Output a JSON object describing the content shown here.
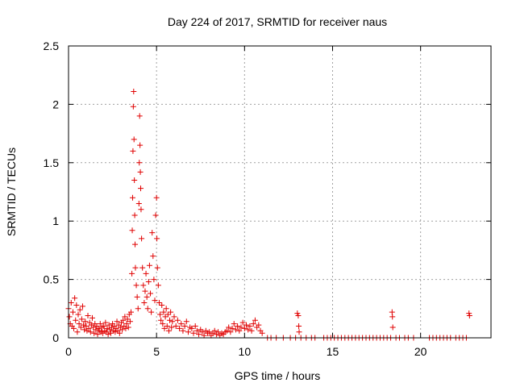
{
  "chart_data": {
    "type": "scatter",
    "title": "Day 224 of 2017, SRMTID for receiver naus",
    "xlabel": "GPS time / hours",
    "ylabel": "SRMTID / TECUs",
    "xlim": [
      0,
      24
    ],
    "ylim": [
      0,
      2.5
    ],
    "xticks": [
      0,
      5,
      10,
      15,
      20
    ],
    "xtick_labels": [
      "0",
      "5",
      "10",
      "15",
      "20"
    ],
    "yticks": [
      0,
      0.5,
      1,
      1.5,
      2,
      2.5
    ],
    "ytick_labels": [
      "0",
      "0.5",
      "1",
      "1.5",
      "2",
      "2.5"
    ],
    "grid": true,
    "marker": "plus",
    "color": "#e00000",
    "series": [
      {
        "name": "SRMTID",
        "points": [
          [
            0.0,
            0.25
          ],
          [
            0.05,
            0.18
          ],
          [
            0.1,
            0.12
          ],
          [
            0.15,
            0.3
          ],
          [
            0.2,
            0.1
          ],
          [
            0.25,
            0.22
          ],
          [
            0.3,
            0.08
          ],
          [
            0.35,
            0.34
          ],
          [
            0.4,
            0.15
          ],
          [
            0.45,
            0.28
          ],
          [
            0.5,
            0.05
          ],
          [
            0.55,
            0.2
          ],
          [
            0.6,
            0.12
          ],
          [
            0.65,
            0.24
          ],
          [
            0.7,
            0.09
          ],
          [
            0.75,
            0.16
          ],
          [
            0.8,
            0.27
          ],
          [
            0.85,
            0.11
          ],
          [
            0.9,
            0.07
          ],
          [
            0.95,
            0.14
          ],
          [
            1.0,
            0.1
          ],
          [
            1.05,
            0.06
          ],
          [
            1.1,
            0.19
          ],
          [
            1.15,
            0.08
          ],
          [
            1.2,
            0.13
          ],
          [
            1.25,
            0.05
          ],
          [
            1.3,
            0.11
          ],
          [
            1.35,
            0.17
          ],
          [
            1.4,
            0.09
          ],
          [
            1.45,
            0.04
          ],
          [
            1.5,
            0.12
          ],
          [
            1.55,
            0.07
          ],
          [
            1.6,
            0.1
          ],
          [
            1.65,
            0.03
          ],
          [
            1.7,
            0.08
          ],
          [
            1.75,
            0.06
          ],
          [
            1.8,
            0.12
          ],
          [
            1.85,
            0.05
          ],
          [
            1.9,
            0.09
          ],
          [
            1.95,
            0.04
          ],
          [
            2.0,
            0.1
          ],
          [
            2.05,
            0.06
          ],
          [
            2.1,
            0.13
          ],
          [
            2.15,
            0.05
          ],
          [
            2.2,
            0.08
          ],
          [
            2.25,
            0.03
          ],
          [
            2.3,
            0.11
          ],
          [
            2.35,
            0.07
          ],
          [
            2.4,
            0.04
          ],
          [
            2.45,
            0.09
          ],
          [
            2.5,
            0.12
          ],
          [
            2.55,
            0.06
          ],
          [
            2.6,
            0.1
          ],
          [
            2.65,
            0.05
          ],
          [
            2.7,
            0.08
          ],
          [
            2.75,
            0.14
          ],
          [
            2.8,
            0.06
          ],
          [
            2.85,
            0.11
          ],
          [
            2.9,
            0.04
          ],
          [
            2.95,
            0.09
          ],
          [
            3.0,
            0.13
          ],
          [
            3.05,
            0.07
          ],
          [
            3.1,
            0.15
          ],
          [
            3.15,
            0.1
          ],
          [
            3.2,
            0.18
          ],
          [
            3.25,
            0.08
          ],
          [
            3.3,
            0.12
          ],
          [
            3.35,
            0.16
          ],
          [
            3.4,
            0.09
          ],
          [
            3.45,
            0.2
          ],
          [
            3.5,
            0.14
          ],
          [
            3.55,
            0.22
          ],
          [
            3.6,
            0.55
          ],
          [
            3.62,
            0.92
          ],
          [
            3.64,
            1.2
          ],
          [
            3.66,
            1.6
          ],
          [
            3.68,
            1.98
          ],
          [
            3.7,
            2.11
          ],
          [
            3.72,
            1.7
          ],
          [
            3.74,
            1.35
          ],
          [
            3.76,
            1.05
          ],
          [
            3.78,
            0.8
          ],
          [
            3.8,
            0.6
          ],
          [
            3.85,
            0.45
          ],
          [
            3.9,
            0.35
          ],
          [
            3.95,
            0.25
          ],
          [
            4.0,
            1.15
          ],
          [
            4.02,
            1.5
          ],
          [
            4.04,
            1.9
          ],
          [
            4.06,
            1.65
          ],
          [
            4.08,
            1.42
          ],
          [
            4.1,
            1.28
          ],
          [
            4.12,
            1.1
          ],
          [
            4.15,
            0.85
          ],
          [
            4.2,
            0.6
          ],
          [
            4.25,
            0.45
          ],
          [
            4.3,
            0.3
          ],
          [
            4.35,
            0.4
          ],
          [
            4.4,
            0.55
          ],
          [
            4.45,
            0.35
          ],
          [
            4.5,
            0.25
          ],
          [
            4.55,
            0.48
          ],
          [
            4.6,
            0.62
          ],
          [
            4.65,
            0.38
          ],
          [
            4.7,
            0.22
          ],
          [
            4.75,
            0.9
          ],
          [
            4.8,
            0.7
          ],
          [
            4.85,
            0.5
          ],
          [
            4.9,
            0.32
          ],
          [
            4.95,
            1.05
          ],
          [
            5.0,
            1.2
          ],
          [
            5.02,
            0.85
          ],
          [
            5.05,
            0.6
          ],
          [
            5.1,
            0.45
          ],
          [
            5.15,
            0.3
          ],
          [
            5.2,
            0.2
          ],
          [
            5.25,
            0.15
          ],
          [
            5.3,
            0.28
          ],
          [
            5.35,
            0.12
          ],
          [
            5.4,
            0.22
          ],
          [
            5.45,
            0.08
          ],
          [
            5.5,
            0.18
          ],
          [
            5.55,
            0.25
          ],
          [
            5.6,
            0.1
          ],
          [
            5.65,
            0.2
          ],
          [
            5.7,
            0.06
          ],
          [
            5.75,
            0.15
          ],
          [
            5.8,
            0.22
          ],
          [
            5.85,
            0.09
          ],
          [
            5.9,
            0.14
          ],
          [
            6.0,
            0.18
          ],
          [
            6.1,
            0.1
          ],
          [
            6.2,
            0.15
          ],
          [
            6.3,
            0.08
          ],
          [
            6.4,
            0.12
          ],
          [
            6.5,
            0.06
          ],
          [
            6.6,
            0.1
          ],
          [
            6.7,
            0.14
          ],
          [
            6.8,
            0.05
          ],
          [
            6.9,
            0.09
          ],
          [
            7.0,
            0.08
          ],
          [
            7.1,
            0.04
          ],
          [
            7.2,
            0.1
          ],
          [
            7.3,
            0.06
          ],
          [
            7.4,
            0.03
          ],
          [
            7.5,
            0.07
          ],
          [
            7.6,
            0.05
          ],
          [
            7.7,
            0.02
          ],
          [
            7.8,
            0.06
          ],
          [
            7.9,
            0.04
          ],
          [
            8.0,
            0.05
          ],
          [
            8.1,
            0.02
          ],
          [
            8.2,
            0.04
          ],
          [
            8.3,
            0.06
          ],
          [
            8.4,
            0.03
          ],
          [
            8.5,
            0.05
          ],
          [
            8.6,
            0.02
          ],
          [
            8.7,
            0.04
          ],
          [
            8.8,
            0.03
          ],
          [
            8.9,
            0.05
          ],
          [
            9.0,
            0.06
          ],
          [
            9.1,
            0.09
          ],
          [
            9.2,
            0.05
          ],
          [
            9.3,
            0.08
          ],
          [
            9.4,
            0.12
          ],
          [
            9.5,
            0.07
          ],
          [
            9.6,
            0.1
          ],
          [
            9.7,
            0.06
          ],
          [
            9.8,
            0.09
          ],
          [
            9.9,
            0.13
          ],
          [
            10.0,
            0.08
          ],
          [
            10.1,
            0.11
          ],
          [
            10.2,
            0.07
          ],
          [
            10.3,
            0.1
          ],
          [
            10.4,
            0.06
          ],
          [
            10.5,
            0.12
          ],
          [
            10.6,
            0.15
          ],
          [
            10.7,
            0.09
          ],
          [
            10.8,
            0.11
          ],
          [
            10.9,
            0.06
          ],
          [
            11.0,
            0.04
          ],
          [
            11.3,
            0.0
          ],
          [
            11.5,
            0.0
          ],
          [
            11.8,
            0.0
          ],
          [
            12.2,
            0.0
          ],
          [
            12.6,
            0.0
          ],
          [
            12.9,
            0.0
          ],
          [
            13.0,
            0.21
          ],
          [
            13.05,
            0.19
          ],
          [
            13.08,
            0.1
          ],
          [
            13.1,
            0.05
          ],
          [
            13.2,
            0.0
          ],
          [
            13.5,
            0.0
          ],
          [
            13.8,
            0.0
          ],
          [
            14.0,
            0.0
          ],
          [
            14.5,
            0.0
          ],
          [
            14.7,
            0.0
          ],
          [
            14.9,
            0.0
          ],
          [
            15.1,
            0.0
          ],
          [
            15.3,
            0.0
          ],
          [
            15.5,
            0.0
          ],
          [
            15.7,
            0.0
          ],
          [
            15.9,
            0.0
          ],
          [
            16.1,
            0.0
          ],
          [
            16.3,
            0.0
          ],
          [
            16.5,
            0.0
          ],
          [
            16.7,
            0.0
          ],
          [
            16.9,
            0.0
          ],
          [
            17.1,
            0.0
          ],
          [
            17.3,
            0.0
          ],
          [
            17.5,
            0.0
          ],
          [
            17.7,
            0.0
          ],
          [
            17.9,
            0.0
          ],
          [
            18.1,
            0.0
          ],
          [
            18.3,
            0.0
          ],
          [
            18.38,
            0.22
          ],
          [
            18.4,
            0.18
          ],
          [
            18.42,
            0.09
          ],
          [
            18.6,
            0.0
          ],
          [
            18.8,
            0.0
          ],
          [
            19.1,
            0.0
          ],
          [
            19.3,
            0.0
          ],
          [
            19.6,
            0.0
          ],
          [
            20.5,
            0.0
          ],
          [
            20.7,
            0.0
          ],
          [
            20.9,
            0.0
          ],
          [
            21.1,
            0.0
          ],
          [
            21.3,
            0.0
          ],
          [
            21.5,
            0.0
          ],
          [
            21.7,
            0.0
          ],
          [
            22.0,
            0.0
          ],
          [
            22.2,
            0.0
          ],
          [
            22.4,
            0.0
          ],
          [
            22.6,
            0.0
          ],
          [
            22.75,
            0.21
          ],
          [
            22.78,
            0.19
          ]
        ]
      }
    ]
  }
}
